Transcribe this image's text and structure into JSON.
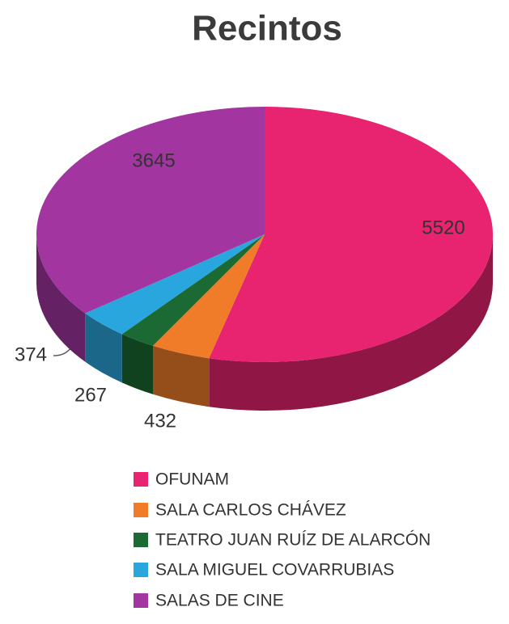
{
  "chart_data": {
    "type": "pie",
    "title": "Recintos",
    "categories": [
      "OFUNAM",
      "SALA CARLOS CHÁVEZ",
      "TEATRO JUAN RUÍZ DE ALARCÓN",
      "SALA MIGUEL COVARRUBIAS",
      "SALAS DE CINE"
    ],
    "values": [
      5520,
      432,
      267,
      374,
      3645
    ],
    "colors": [
      "#e8236f",
      "#f07c2a",
      "#1b6a34",
      "#2aa6de",
      "#a2359f"
    ]
  }
}
